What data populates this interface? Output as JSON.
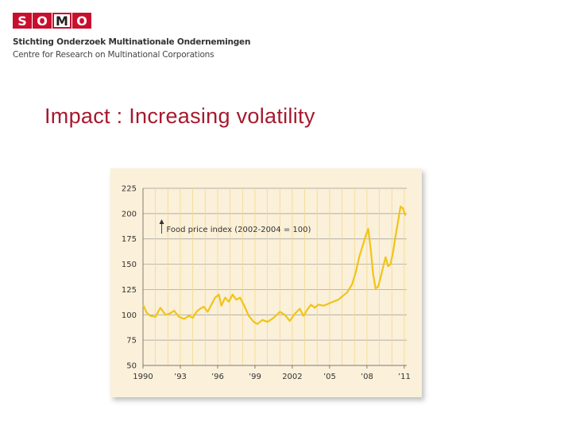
{
  "header": {
    "logo_letters": [
      "S",
      "O",
      "M",
      "O"
    ],
    "org_name": "Stichting Onderzoek Multinationale Ondernemingen",
    "org_subtitle": "Centre for Research on Multinational Corporations",
    "brand_color": "#c8102e"
  },
  "slide": {
    "title": "Impact : Increasing volatility",
    "title_color": "#a6192e"
  },
  "chart_data": {
    "type": "line",
    "title": "",
    "annotation": "Food price index (2002-2004 = 100)",
    "xlabel": "",
    "ylabel": "",
    "ylim": [
      50,
      225
    ],
    "yticks": [
      50,
      75,
      100,
      125,
      150,
      175,
      200,
      225
    ],
    "xlim": [
      1990,
      2011.2
    ],
    "xticks": [
      {
        "value": 1990,
        "label": "1990"
      },
      {
        "value": 1993,
        "label": "’93"
      },
      {
        "value": 1996,
        "label": "’96"
      },
      {
        "value": 1999,
        "label": "’99"
      },
      {
        "value": 2002,
        "label": "2002"
      },
      {
        "value": 2005,
        "label": "’05"
      },
      {
        "value": 2008,
        "label": "’08"
      },
      {
        "value": 2011,
        "label": "’11"
      }
    ],
    "line_color": "#f0c419",
    "background": "#fbf0d9",
    "series": [
      {
        "name": "Food price index",
        "x": [
          1990.0,
          1990.3,
          1990.6,
          1991.0,
          1991.4,
          1991.8,
          1992.1,
          1992.5,
          1992.9,
          1993.3,
          1993.7,
          1994.0,
          1994.3,
          1994.6,
          1994.9,
          1995.2,
          1995.5,
          1995.8,
          1996.1,
          1996.3,
          1996.6,
          1996.9,
          1997.2,
          1997.5,
          1997.8,
          1998.1,
          1998.5,
          1998.9,
          1999.2,
          1999.6,
          2000.0,
          2000.5,
          2001.0,
          2001.4,
          2001.8,
          2002.2,
          2002.6,
          2002.9,
          2003.2,
          2003.5,
          2003.8,
          2004.1,
          2004.5,
          2004.9,
          2005.3,
          2005.7,
          2006.0,
          2006.4,
          2006.8,
          2007.1,
          2007.4,
          2007.7,
          2007.9,
          2008.1,
          2008.3,
          2008.5,
          2008.7,
          2008.9,
          2009.1,
          2009.3,
          2009.5,
          2009.7,
          2009.9,
          2010.1,
          2010.3,
          2010.5,
          2010.7,
          2010.9,
          2011.1
        ],
        "values": [
          110,
          102,
          99,
          98,
          107,
          100,
          101,
          104,
          98,
          96,
          99,
          97,
          103,
          106,
          108,
          103,
          110,
          117,
          120,
          109,
          117,
          113,
          120,
          115,
          117,
          110,
          99,
          93,
          91,
          95,
          93,
          97,
          103,
          100,
          94,
          101,
          106,
          99,
          105,
          110,
          107,
          110,
          109,
          111,
          113,
          115,
          118,
          122,
          130,
          142,
          158,
          170,
          178,
          185,
          165,
          140,
          126,
          128,
          137,
          147,
          157,
          148,
          150,
          162,
          178,
          192,
          207,
          205,
          198
        ]
      }
    ]
  }
}
